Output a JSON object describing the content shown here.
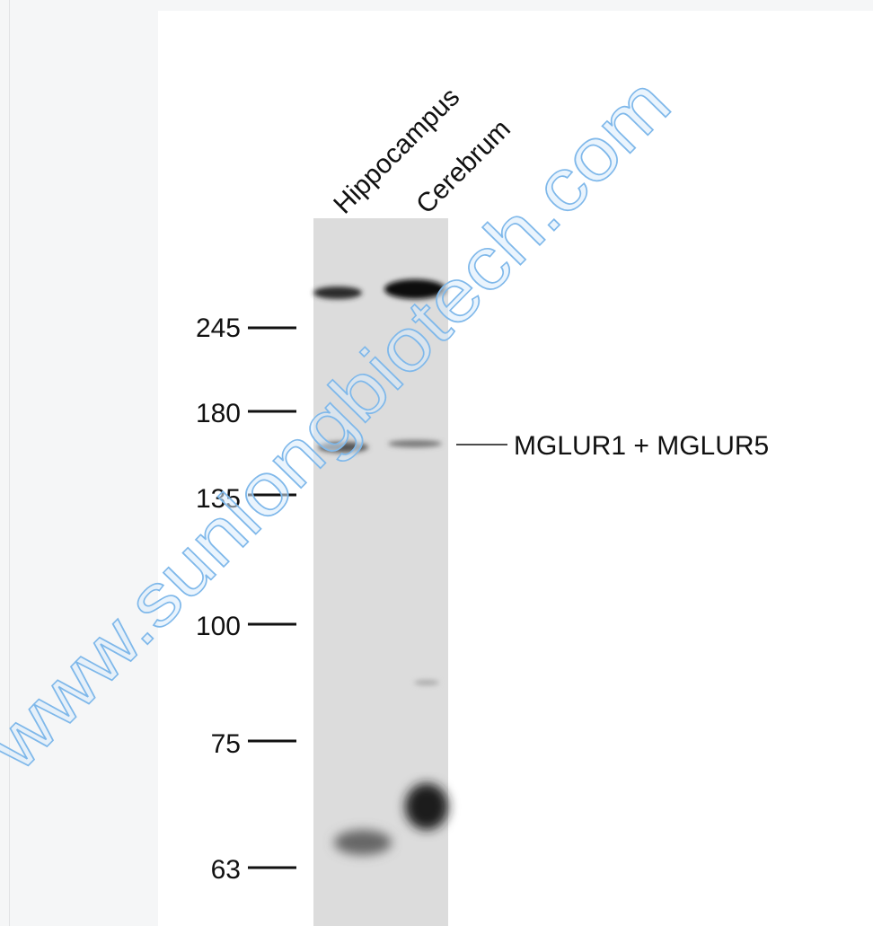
{
  "lanes": [
    "Hippocampus",
    "Cerebrum"
  ],
  "markers": [
    "245",
    "180",
    "135",
    "100",
    "75",
    "63"
  ],
  "band_label": "MGLUR1 + MGLUR5",
  "watermark": "www.sunlongbiotech.com"
}
